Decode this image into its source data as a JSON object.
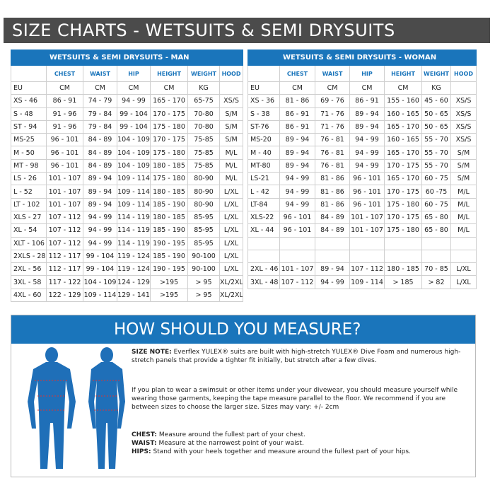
{
  "header": {
    "title": "SIZE CHARTS - WETSUITS & SEMI DRYSUITS"
  },
  "tables": [
    {
      "title": "WETSUITS & SEMI DRYSUITS - MAN",
      "columns": [
        "CHEST",
        "WAIST",
        "HIP",
        "HEIGHT",
        "WEIGHT",
        "HOOD"
      ],
      "units": [
        "EU",
        "CM",
        "CM",
        "CM",
        "CM",
        "KG"
      ],
      "rows": [
        [
          "XS - 46",
          "86 - 91",
          "74 - 79",
          "94 - 99",
          "165 - 170",
          "65-75",
          "XS/S"
        ],
        [
          "S - 48",
          "91 - 96",
          "79 - 84",
          "99 - 104",
          "170 - 175",
          "70-80",
          "S/M"
        ],
        [
          "ST - 94",
          "91 - 96",
          "79 - 84",
          "99 - 104",
          "175 - 180",
          "70-80",
          "S/M"
        ],
        [
          "MS-25",
          "96 - 101",
          "84 - 89",
          "104 - 109",
          "170 - 175",
          "75-85",
          "S/M"
        ],
        [
          "M - 50",
          "96 - 101",
          "84 - 89",
          "104 - 109",
          "175 - 180",
          "75-85",
          "M/L"
        ],
        [
          "MT - 98",
          "96 - 101",
          "84 - 89",
          "104 - 109",
          "180 - 185",
          "75-85",
          "M/L"
        ],
        [
          "LS - 26",
          "101 - 107",
          "89 - 94",
          "109 - 114",
          "175 - 180",
          "80-90",
          "M/L"
        ],
        [
          "L - 52",
          "101 - 107",
          "89 - 94",
          "109 - 114",
          "180 - 185",
          "80-90",
          "L/XL"
        ],
        [
          "LT - 102",
          "101 - 107",
          "89 - 94",
          "109 - 114",
          "185 - 190",
          "80-90",
          "L/XL"
        ],
        [
          "XLS - 27",
          "107 - 112",
          "94 - 99",
          "114 - 119",
          "180 - 185",
          "85-95",
          "L/XL"
        ],
        [
          "XL - 54",
          "107 - 112",
          "94 - 99",
          "114 - 119",
          "185 - 190",
          "85-95",
          "L/XL"
        ],
        [
          "XLT - 106",
          "107 - 112",
          "94 - 99",
          "114 - 119",
          "190 - 195",
          "85-95",
          "L/XL"
        ],
        [
          "2XLS - 28",
          "112 - 117",
          "99 - 104",
          "119 - 124",
          "185 - 190",
          "90-100",
          "L/XL"
        ],
        [
          "2XL - 56",
          "112 - 117",
          "99 - 104",
          "119 - 124",
          "190 - 195",
          "90-100",
          "L/XL"
        ],
        [
          "3XL - 58",
          "117 - 122",
          "104 - 109",
          "124 - 129",
          ">195",
          "> 95",
          "XL/2XL"
        ],
        [
          "4XL - 60",
          "122 - 129",
          "109 - 114",
          "129 - 141",
          ">195",
          "> 95",
          "XL/2XL"
        ]
      ]
    },
    {
      "title": "WETSUITS & SEMI DRYSUITS - WOMAN",
      "columns": [
        "CHEST",
        "WAIST",
        "HIP",
        "HEIGHT",
        "WEIGHT",
        "HOOD"
      ],
      "units": [
        "EU",
        "CM",
        "CM",
        "CM",
        "CM",
        "KG"
      ],
      "rows": [
        [
          "XS - 36",
          "81 - 86",
          "69 - 76",
          "86 - 91",
          "155 - 160",
          "45 - 60",
          "XS/S"
        ],
        [
          "S - 38",
          "86 - 91",
          "71 - 76",
          "89 - 94",
          "160 - 165",
          "50 - 65",
          "XS/S"
        ],
        [
          "ST-76",
          "86 - 91",
          "71 - 76",
          "89 - 94",
          "165 - 170",
          "50 - 65",
          "XS/S"
        ],
        [
          "MS-20",
          "89 - 94",
          "76 - 81",
          "94 - 99",
          "160 - 165",
          "55 - 70",
          "XS/S"
        ],
        [
          "M - 40",
          "89 - 94",
          "76 - 81",
          "94 - 99",
          "165 - 170",
          "55 - 70",
          "S/M"
        ],
        [
          "MT-80",
          "89 - 94",
          "76 - 81",
          "94 - 99",
          "170 - 175",
          "55 - 70",
          "S/M"
        ],
        [
          "LS-21",
          "94 - 99",
          "81 - 86",
          "96 - 101",
          "165 - 170",
          "60 - 75",
          "S/M"
        ],
        [
          "L - 42",
          "94 - 99",
          "81 - 86",
          "96 - 101",
          "170 - 175",
          "60 -75",
          "M/L"
        ],
        [
          "LT-84",
          "94 - 99",
          "81 - 86",
          "96 - 101",
          "175 - 180",
          "60 - 75",
          "M/L"
        ],
        [
          "XLS-22",
          "96 - 101",
          "84 - 89",
          "101 - 107",
          "170 - 175",
          "65 - 80",
          "M/L"
        ],
        [
          "XL - 44",
          "96 - 101",
          "84 - 89",
          "101 - 107",
          "175 - 180",
          "65 - 80",
          "M/L"
        ],
        null,
        null,
        [
          "2XL - 46",
          "101 - 107",
          "89 - 94",
          "107 - 112",
          "180 - 185",
          "70 - 85",
          "L/XL"
        ],
        [
          "3XL - 48",
          "107 - 112",
          "94 - 99",
          "109 - 114",
          "> 185",
          "> 82",
          "L/XL"
        ]
      ]
    }
  ],
  "measure": {
    "title": "HOW SHOULD YOU MEASURE?",
    "size_note": {
      "label": "SIZE NOTE:",
      "text": "Everflex YULEX® suits are built with high-stretch YULEX® Dive Foam and numerous high-stretch panels that provide a tighter fit initially, but stretch after a few dives."
    },
    "advice": "If you plan to wear a swimsuit or other items under your divewear, you should measure yourself while wearing those garments, keeping the tape measure parallel to the floor. We recommend if you are between sizes to choose the larger size. Sizes may vary: +/- 2cm",
    "items": [
      {
        "label": "CHEST:",
        "text": "Measure around the fullest part of your chest."
      },
      {
        "label": "WAIST:",
        "text": "Measure at the narrowest point of your waist."
      },
      {
        "label": "HIPS:",
        "text": "Stand with your heels together and measure around the fullest part of your hips."
      }
    ]
  }
}
